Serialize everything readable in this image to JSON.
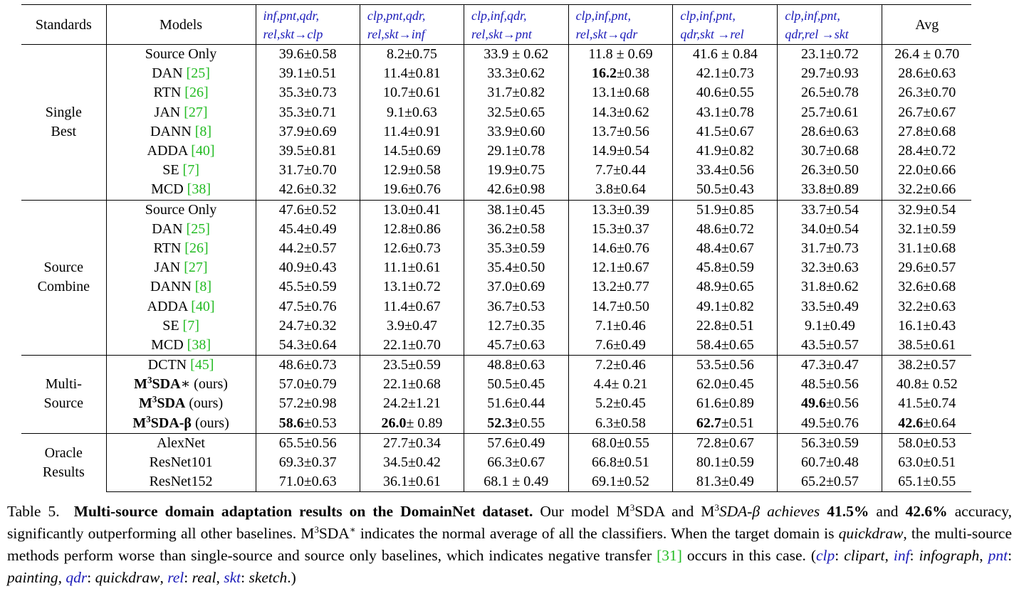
{
  "header": {
    "standards": "Standards",
    "models": "Models",
    "cols": [
      [
        "inf,pnt,qdr,",
        "rel,skt→clp"
      ],
      [
        "clp,pnt,qdr,",
        "rel,skt→inf"
      ],
      [
        "clp,inf,qdr,",
        "rel,skt→pnt"
      ],
      [
        "clp,inf,pnt,",
        "rel,skt→qdr"
      ],
      [
        "clp,inf,pnt,",
        "qdr,skt →rel"
      ],
      [
        "clp,inf,pnt,",
        "qdr,rel →skt"
      ]
    ],
    "avg": "Avg"
  },
  "groups": [
    {
      "label": [
        "Single",
        "Best"
      ],
      "rows": [
        {
          "m": "Source Only",
          "v": [
            "39.6±0.58",
            "8.2±0.75",
            "33.9 ± 0.62",
            "11.8 ± 0.69",
            "41.6 ± 0.84",
            "23.1±0.72",
            "26.4 ± 0.70"
          ]
        },
        {
          "m": "DAN",
          "ref": "[25]",
          "v": [
            "39.1±0.51",
            "11.4±0.81",
            "33.3±0.62",
            "16.2±0.38",
            "42.1±0.73",
            "29.7±0.93",
            "28.6±0.63"
          ],
          "bold": [
            3
          ]
        },
        {
          "m": "RTN",
          "ref": "[26]",
          "v": [
            "35.3±0.73",
            "10.7±0.61",
            "31.7±0.82",
            "13.1±0.68",
            "40.6±0.55",
            "26.5±0.78",
            "26.3±0.70"
          ]
        },
        {
          "m": "JAN",
          "ref": "[27]",
          "v": [
            "35.3±0.71",
            "9.1±0.63",
            "32.5±0.65",
            "14.3±0.62",
            "43.1±0.78",
            "25.7±0.61",
            "26.7±0.67"
          ]
        },
        {
          "m": "DANN",
          "ref": "[8]",
          "v": [
            "37.9±0.69",
            "11.4±0.91",
            "33.9±0.60",
            "13.7±0.56",
            "41.5±0.67",
            "28.6±0.63",
            "27.8±0.68"
          ]
        },
        {
          "m": "ADDA",
          "ref": "[40]",
          "v": [
            "39.5±0.81",
            "14.5±0.69",
            "29.1±0.78",
            "14.9±0.54",
            "41.9±0.82",
            "30.7±0.68",
            "28.4±0.72"
          ]
        },
        {
          "m": "SE",
          "ref": "[7]",
          "v": [
            "31.7±0.70",
            "12.9±0.58",
            "19.9±0.75",
            "7.7±0.44",
            "33.4±0.56",
            "26.3±0.50",
            "22.0±0.66"
          ]
        },
        {
          "m": "MCD",
          "ref": "[38]",
          "v": [
            "42.6±0.32",
            "19.6±0.76",
            "42.6±0.98",
            "3.8±0.64",
            "50.5±0.43",
            "33.8±0.89",
            "32.2±0.66"
          ]
        }
      ]
    },
    {
      "label": [
        "Source",
        "Combine"
      ],
      "rows": [
        {
          "m": "Source Only",
          "v": [
            "47.6±0.52",
            "13.0±0.41",
            "38.1±0.45",
            "13.3±0.39",
            "51.9±0.85",
            "33.7±0.54",
            "32.9±0.54"
          ]
        },
        {
          "m": "DAN",
          "ref": "[25]",
          "v": [
            "45.4±0.49",
            "12.8±0.86",
            "36.2±0.58",
            "15.3±0.37",
            "48.6±0.72",
            "34.0±0.54",
            "32.1±0.59"
          ]
        },
        {
          "m": "RTN",
          "ref": "[26]",
          "v": [
            "44.2±0.57",
            "12.6±0.73",
            "35.3±0.59",
            "14.6±0.76",
            "48.4±0.67",
            "31.7±0.73",
            "31.1±0.68"
          ]
        },
        {
          "m": "JAN",
          "ref": "[27]",
          "v": [
            "40.9±0.43",
            "11.1±0.61",
            "35.4±0.50",
            "12.1±0.67",
            "45.8±0.59",
            "32.3±0.63",
            "29.6±0.57"
          ]
        },
        {
          "m": "DANN",
          "ref": "[8]",
          "v": [
            "45.5±0.59",
            "13.1±0.72",
            "37.0±0.69",
            "13.2±0.77",
            "48.9±0.65",
            "31.8±0.62",
            "32.6±0.68"
          ]
        },
        {
          "m": "ADDA",
          "ref": "[40]",
          "v": [
            "47.5±0.76",
            "11.4±0.67",
            "36.7±0.53",
            "14.7±0.50",
            "49.1±0.82",
            "33.5±0.49",
            "32.2±0.63"
          ]
        },
        {
          "m": "SE",
          "ref": "[7]",
          "v": [
            "24.7±0.32",
            "3.9±0.47",
            "12.7±0.35",
            "7.1±0.46",
            "22.8±0.51",
            "9.1±0.49",
            "16.1±0.43"
          ]
        },
        {
          "m": "MCD",
          "ref": "[38]",
          "v": [
            "54.3±0.64",
            "22.1±0.70",
            "45.7±0.63",
            "7.6±0.49",
            "58.4±0.65",
            "43.5±0.57",
            "38.5±0.61"
          ]
        }
      ]
    },
    {
      "label": [
        "Multi-",
        "Source"
      ],
      "rows": [
        {
          "m": "DCTN",
          "ref": "[45]",
          "v": [
            "48.6±0.73",
            "23.5±0.59",
            "48.8±0.63",
            "7.2±0.46",
            "53.5±0.56",
            "47.3±0.47",
            "38.2±0.57"
          ]
        },
        {
          "mb": "M",
          "sup": "3",
          "mb2": "SDA",
          "suf": "∗ (ours)",
          "v": [
            "57.0±0.79",
            "22.1±0.68",
            "50.5±0.45",
            "4.4± 0.21",
            "62.0±0.45",
            "48.5±0.56",
            "40.8± 0.52"
          ]
        },
        {
          "mb": "M",
          "sup": "3",
          "mb2": "SDA",
          "suf": " (ours)",
          "v": [
            "57.2±0.98",
            "24.2±1.21",
            "51.6±0.44",
            "5.2±0.45",
            "61.6±0.89",
            "49.6±0.56",
            "41.5±0.74"
          ],
          "bold": [
            5
          ]
        },
        {
          "mb": "M",
          "sup": "3",
          "mb2": "SDA-β",
          "suf": " (ours)",
          "v": [
            "58.6±0.53",
            "26.0± 0.89",
            "52.3±0.55",
            "6.3±0.58",
            "62.7±0.51",
            "49.5±0.76",
            "42.6±0.64"
          ],
          "bold": [
            0,
            1,
            2,
            4,
            6
          ]
        }
      ]
    },
    {
      "label": [
        "Oracle",
        "Results"
      ],
      "rows": [
        {
          "m": "AlexNet",
          "v": [
            "65.5±0.56",
            "27.7±0.34",
            "57.6±0.49",
            "68.0±0.55",
            "72.8±0.67",
            "56.3±0.59",
            "58.0±0.53"
          ]
        },
        {
          "m": "ResNet101",
          "v": [
            "69.3±0.37",
            "34.5±0.42",
            "66.3±0.67",
            "66.8±0.51",
            "80.1±0.59",
            "60.7±0.48",
            "63.0±0.51"
          ]
        },
        {
          "m": "ResNet152",
          "v": [
            "71.0±0.63",
            "36.1±0.61",
            "68.1 ± 0.49",
            "69.1±0.52",
            "81.3±0.49",
            "65.2±0.57",
            "65.1±0.55"
          ]
        }
      ]
    }
  ],
  "caption": {
    "label": "Table 5.",
    "title": "Multi-source domain adaptation results on the DomainNet  dataset.",
    "t1": "Our model M",
    "sup1": "3",
    "t2": "SDA and M",
    "sup2": "3",
    "t3": "SDA-β achieves",
    "b1": "41.5%",
    "t4": "and",
    "b2": "42.6%",
    "t5": "accuracy, significantly outperforming all other baselines. M",
    "sup3": "3",
    "t6": "SDA",
    "sup4": "∗",
    "t7": "indicates the normal average of all the classifiers. When the target domain is",
    "i1": "quickdraw",
    "t8": ", the multi-source methods perform worse than single-source and source only baselines, which indicates negative transfer",
    "ref1": "[31]",
    "t9": "occurs in this case. (",
    "legend": [
      {
        "k": "clp",
        "v": "clipart"
      },
      {
        "k": "inf",
        "v": "infograph"
      },
      {
        "k": "pnt",
        "v": "painting"
      },
      {
        "k": "qdr",
        "v": "quickdraw"
      },
      {
        "k": "rel",
        "v": "real"
      },
      {
        "k": "skt",
        "v": "sketch"
      }
    ],
    "t10": ".)"
  }
}
